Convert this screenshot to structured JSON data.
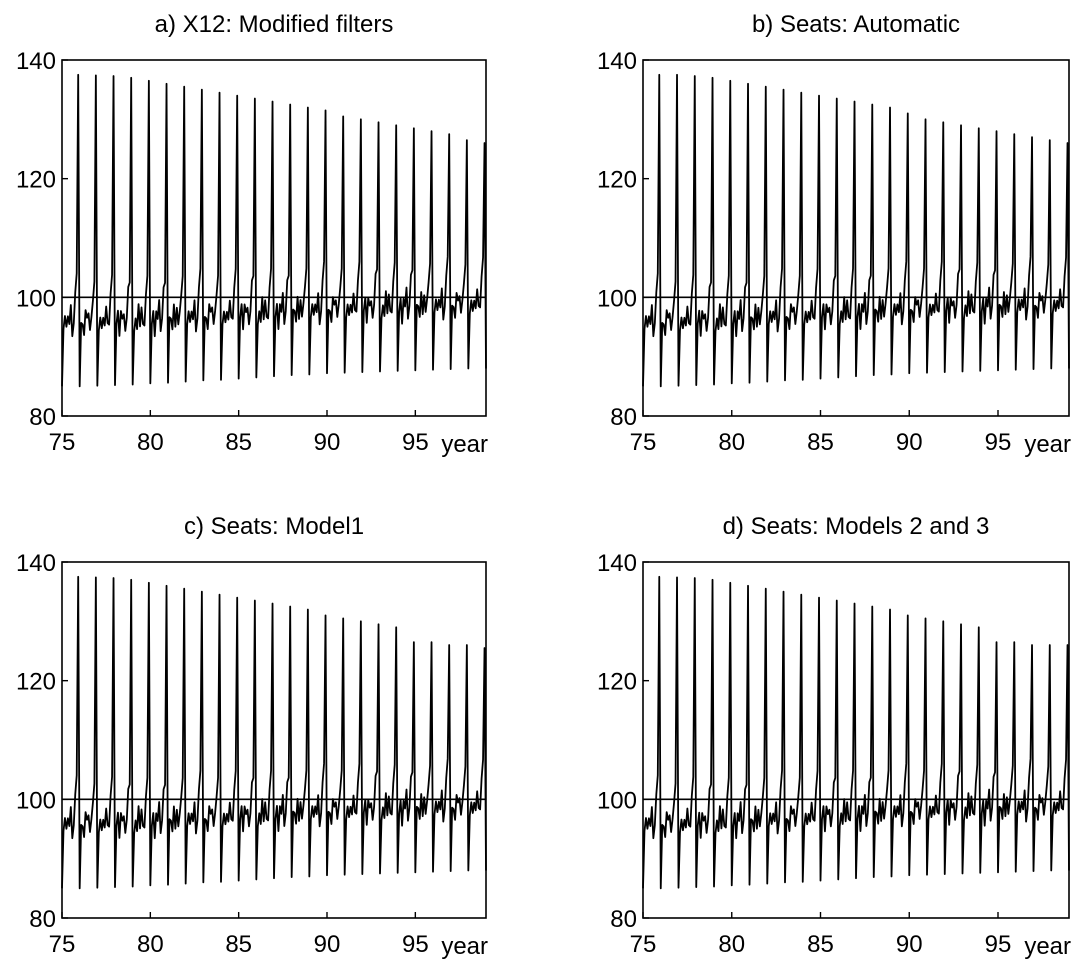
{
  "chart_data": [
    {
      "type": "line",
      "title": "a) X12: Modified filters",
      "xlabel": "year",
      "ylabel": "",
      "xlim": [
        75,
        99
      ],
      "ylim": [
        80,
        140
      ],
      "xticks": [
        "75",
        "80",
        "85",
        "90",
        "95"
      ],
      "yticks": [
        "80",
        "100",
        "120",
        "140"
      ],
      "reference_line": 100,
      "frequency": "monthly",
      "series": [
        {
          "x": [
            75.5,
            76.5,
            77.5,
            78.5,
            79.5,
            80.5,
            81.5,
            82.5,
            83.5,
            84.5,
            85.5,
            86.5,
            87.5,
            88.5,
            89.5,
            90.5,
            91.5,
            92.5,
            93.5,
            94.5,
            95.5,
            96.5,
            97.5,
            98.5
          ],
          "peak": [
            137.5,
            137.4,
            137.3,
            137.0,
            136.5,
            136.0,
            135.5,
            135.0,
            134.5,
            134.0,
            133.5,
            133.0,
            132.5,
            132.0,
            131.5,
            130.5,
            130.0,
            129.5,
            129.0,
            128.5,
            128.0,
            127.5,
            126.5,
            126.0
          ],
          "trough": [
            85.0,
            85.0,
            85.1,
            85.2,
            85.3,
            85.5,
            85.6,
            85.8,
            86.0,
            86.1,
            86.3,
            86.5,
            86.7,
            86.9,
            87.0,
            87.2,
            87.3,
            87.4,
            87.5,
            87.6,
            87.7,
            87.8,
            87.9,
            88.0
          ]
        }
      ]
    },
    {
      "type": "line",
      "title": "b) Seats: Automatic",
      "xlabel": "year",
      "ylabel": "",
      "xlim": [
        75,
        99
      ],
      "ylim": [
        80,
        140
      ],
      "xticks": [
        "75",
        "80",
        "85",
        "90",
        "95"
      ],
      "yticks": [
        "80",
        "100",
        "120",
        "140"
      ],
      "reference_line": 100,
      "frequency": "monthly",
      "series": [
        {
          "x": [
            75.5,
            76.5,
            77.5,
            78.5,
            79.5,
            80.5,
            81.5,
            82.5,
            83.5,
            84.5,
            85.5,
            86.5,
            87.5,
            88.5,
            89.5,
            90.5,
            91.5,
            92.5,
            93.5,
            94.5,
            95.5,
            96.5,
            97.5,
            98.5
          ],
          "peak": [
            137.5,
            137.5,
            137.3,
            137.0,
            136.5,
            136.0,
            135.5,
            135.0,
            134.5,
            134.0,
            133.5,
            133.0,
            132.5,
            132.0,
            131.0,
            130.0,
            129.5,
            129.0,
            128.5,
            128.0,
            127.5,
            127.0,
            126.5,
            126.0
          ],
          "trough": [
            85.0,
            85.0,
            85.1,
            85.2,
            85.3,
            85.5,
            85.6,
            85.8,
            86.0,
            86.1,
            86.3,
            86.5,
            86.7,
            86.9,
            87.0,
            87.2,
            87.3,
            87.4,
            87.5,
            87.6,
            87.7,
            87.8,
            87.9,
            88.0
          ]
        }
      ]
    },
    {
      "type": "line",
      "title": "c) Seats: Model1",
      "xlabel": "year",
      "ylabel": "",
      "xlim": [
        75,
        99
      ],
      "ylim": [
        80,
        140
      ],
      "xticks": [
        "75",
        "80",
        "85",
        "90",
        "95"
      ],
      "yticks": [
        "80",
        "100",
        "120",
        "140"
      ],
      "reference_line": 100,
      "frequency": "monthly",
      "series": [
        {
          "x": [
            75.5,
            76.5,
            77.5,
            78.5,
            79.5,
            80.5,
            81.5,
            82.5,
            83.5,
            84.5,
            85.5,
            86.5,
            87.5,
            88.5,
            89.5,
            90.5,
            91.5,
            92.5,
            93.5,
            94.5,
            95.5,
            96.5,
            97.5,
            98.5
          ],
          "peak": [
            137.5,
            137.4,
            137.3,
            137.0,
            136.5,
            136.0,
            135.5,
            135.0,
            134.5,
            134.0,
            133.5,
            133.0,
            132.5,
            132.0,
            131.0,
            130.5,
            130.0,
            129.5,
            129.0,
            126.5,
            126.5,
            126.0,
            126.0,
            125.5
          ],
          "trough": [
            85.0,
            85.0,
            85.1,
            85.2,
            85.3,
            85.5,
            85.6,
            85.8,
            86.0,
            86.1,
            86.3,
            86.5,
            86.7,
            86.9,
            87.0,
            87.2,
            87.3,
            87.4,
            87.5,
            87.6,
            87.7,
            87.8,
            87.9,
            88.0
          ]
        }
      ]
    },
    {
      "type": "line",
      "title": "d) Seats: Models 2 and 3",
      "xlabel": "year",
      "ylabel": "",
      "xlim": [
        75,
        99
      ],
      "ylim": [
        80,
        140
      ],
      "xticks": [
        "75",
        "80",
        "85",
        "90",
        "95"
      ],
      "yticks": [
        "80",
        "100",
        "120",
        "140"
      ],
      "reference_line": 100,
      "frequency": "monthly",
      "series": [
        {
          "x": [
            75.5,
            76.5,
            77.5,
            78.5,
            79.5,
            80.5,
            81.5,
            82.5,
            83.5,
            84.5,
            85.5,
            86.5,
            87.5,
            88.5,
            89.5,
            90.5,
            91.5,
            92.5,
            93.5,
            94.5,
            95.5,
            96.5,
            97.5,
            98.5
          ],
          "peak": [
            137.5,
            137.4,
            137.3,
            137.0,
            136.5,
            136.0,
            135.5,
            135.0,
            134.5,
            134.0,
            133.5,
            133.0,
            132.5,
            132.0,
            131.0,
            130.5,
            130.0,
            129.5,
            129.0,
            126.5,
            126.5,
            126.0,
            126.0,
            126.0
          ],
          "trough": [
            85.0,
            85.0,
            85.1,
            85.2,
            85.3,
            85.5,
            85.6,
            85.8,
            86.0,
            86.1,
            86.3,
            86.5,
            86.7,
            86.9,
            87.0,
            87.2,
            87.3,
            87.4,
            87.5,
            87.6,
            87.7,
            87.8,
            87.9,
            88.0
          ]
        }
      ]
    }
  ]
}
